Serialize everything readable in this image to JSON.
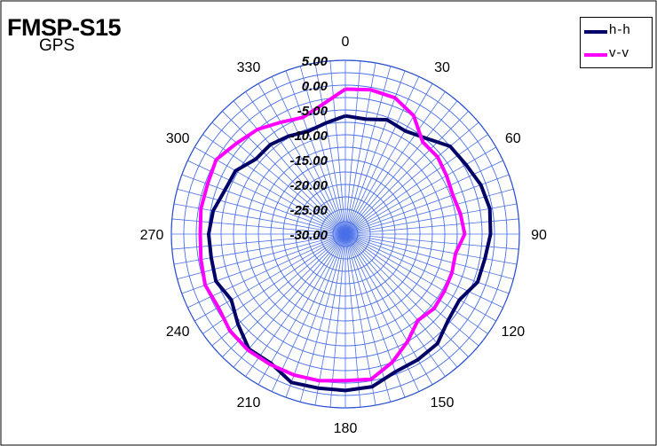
{
  "chart_data": {
    "type": "polar-line",
    "title": "FMSP-S15",
    "subtitle": "GPS",
    "theta_ticks": [
      "0",
      "30",
      "60",
      "90",
      "120",
      "150",
      "180",
      "210",
      "240",
      "270",
      "300",
      "330"
    ],
    "theta_step_deg": 10,
    "r_ticks": [
      "5.00",
      "0.00",
      "-5.00",
      "-10.00",
      "-15.00",
      "-20.00",
      "-25.00",
      "-30.00"
    ],
    "rlim": [
      -30,
      5
    ],
    "grid": true,
    "legend_position": "top-right",
    "angles": [
      0,
      10,
      20,
      30,
      40,
      50,
      60,
      70,
      80,
      90,
      100,
      110,
      120,
      130,
      140,
      150,
      160,
      170,
      180,
      190,
      200,
      210,
      220,
      230,
      240,
      250,
      260,
      270,
      280,
      290,
      300,
      310,
      320,
      330,
      340,
      350
    ],
    "series": [
      {
        "name": "h-h",
        "color": "#000066",
        "values": [
          -6.2,
          -6.5,
          -5.5,
          -6.0,
          -4.8,
          -2.5,
          -2.0,
          -1.0,
          -0.5,
          -0.8,
          -1.5,
          -1.7,
          -3.5,
          -3.0,
          -1.2,
          -0.8,
          -0.5,
          1.2,
          1.5,
          1.5,
          1.8,
          0.0,
          0.2,
          -1.8,
          -3.5,
          -2.3,
          -2.6,
          -2.5,
          -3.0,
          -4.2,
          -4.5,
          -6.5,
          -6.5,
          -7.2,
          -8.0,
          -7.3
        ]
      },
      {
        "name": "v-v",
        "color": "#ff00ff",
        "values": [
          -0.8,
          -0.5,
          -0.8,
          -2.5,
          -5.8,
          -5.8,
          -6.5,
          -7.0,
          -6.5,
          -6.0,
          -7.5,
          -7.2,
          -7.0,
          -6.7,
          -7.3,
          -5.0,
          -2.5,
          -0.3,
          -0.5,
          0.0,
          0.2,
          0.3,
          0.5,
          0.3,
          -0.5,
          0.0,
          -0.5,
          -0.8,
          -0.5,
          -0.5,
          0.0,
          -1.5,
          -2.5,
          -4.0,
          -5.0,
          -3.5
        ]
      }
    ]
  }
}
